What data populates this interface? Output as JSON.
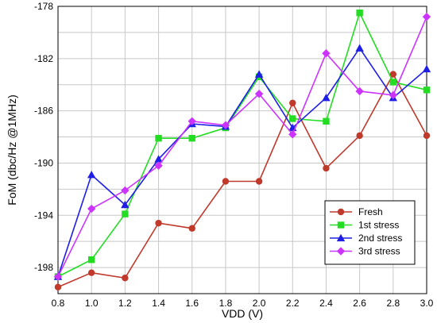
{
  "chart_data": {
    "type": "line",
    "xlabel": "VDD (V)",
    "ylabel": "FoM (dbc/Hz @1MHz)",
    "x": [
      0.8,
      1.0,
      1.2,
      1.4,
      1.6,
      1.8,
      2.0,
      2.2,
      2.4,
      2.6,
      2.8,
      3.0
    ],
    "x_ticks": [
      "0.8",
      "1.0",
      "1.2",
      "1.4",
      "1.6",
      "1.8",
      "2.0",
      "2.2",
      "2.4",
      "2.6",
      "2.8",
      "3.0"
    ],
    "xlim": [
      0.8,
      3.0
    ],
    "ylim": [
      -200,
      -178
    ],
    "y_ticks": [
      -178,
      -182,
      -186,
      -190,
      -194,
      -198
    ],
    "y_tick_labels": [
      "-178",
      "-182",
      "-186",
      "-190",
      "-194",
      "-198"
    ],
    "grid": true,
    "legend_position": "bottom-right",
    "series": [
      {
        "name": "Fresh",
        "color": "#c0392b",
        "marker": "circle",
        "values": [
          -199.5,
          -198.4,
          -198.8,
          -194.6,
          -195.0,
          -191.4,
          -191.4,
          -185.4,
          -190.4,
          -187.9,
          -183.2,
          -187.9
        ]
      },
      {
        "name": "1st stress",
        "color": "#22dd22",
        "marker": "square",
        "values": [
          -198.7,
          -197.4,
          -193.9,
          -188.1,
          -188.1,
          -187.3,
          -183.4,
          -186.6,
          -186.8,
          -178.5,
          -183.8,
          -184.4
        ]
      },
      {
        "name": "2nd stress",
        "color": "#1e1ee6",
        "marker": "triangle",
        "values": [
          -198.7,
          -190.9,
          -193.2,
          -189.7,
          -187.0,
          -187.2,
          -183.2,
          -187.3,
          -185.0,
          -181.2,
          -185.0,
          -182.8
        ]
      },
      {
        "name": "3rd stress",
        "color": "#cc33ff",
        "marker": "diamond",
        "values": [
          -198.7,
          -193.5,
          -192.1,
          -190.2,
          -186.8,
          -187.1,
          -184.7,
          -187.8,
          -181.6,
          -184.5,
          -184.8,
          -178.8
        ]
      }
    ]
  }
}
